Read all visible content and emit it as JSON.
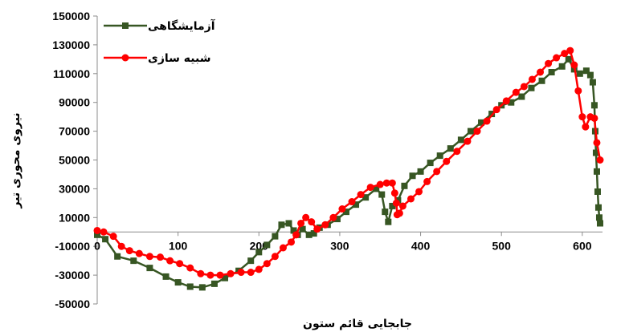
{
  "chart_data": {
    "type": "line",
    "title": "",
    "xlabel": "جابجایی قائم ستون",
    "ylabel": "نیروی محوری تیر",
    "xlim": [
      0,
      625
    ],
    "ylim": [
      -50000,
      150000
    ],
    "x_ticks": [
      0,
      100,
      200,
      300,
      400,
      500,
      600
    ],
    "y_ticks": [
      -50000,
      -30000,
      -10000,
      10000,
      30000,
      50000,
      70000,
      90000,
      110000,
      130000,
      150000
    ],
    "x_tick_labels": [
      "0",
      "100",
      "200",
      "300",
      "400",
      "500",
      "600"
    ],
    "y_tick_labels": [
      "-50000",
      "-30000",
      "-10000",
      "10000",
      "30000",
      "50000",
      "70000",
      "90000",
      "110000",
      "130000",
      "150000"
    ],
    "grid": false,
    "legend_position": "top-left",
    "series": [
      {
        "name": "آزمایشگاهی",
        "color": "#375623",
        "marker": "square",
        "points": [
          [
            0,
            0
          ],
          [
            0,
            -2000
          ],
          [
            10,
            -5000
          ],
          [
            25,
            -17000
          ],
          [
            45,
            -20000
          ],
          [
            65,
            -25000
          ],
          [
            85,
            -31000
          ],
          [
            100,
            -35000
          ],
          [
            115,
            -38000
          ],
          [
            130,
            -38500
          ],
          [
            145,
            -36000
          ],
          [
            158,
            -32000
          ],
          [
            175,
            -27000
          ],
          [
            190,
            -20000
          ],
          [
            200,
            -14000
          ],
          [
            210,
            -9000
          ],
          [
            220,
            -3000
          ],
          [
            228,
            5000
          ],
          [
            237,
            6000
          ],
          [
            243,
            1000
          ],
          [
            248,
            -2000
          ],
          [
            254,
            2000
          ],
          [
            262,
            -2000
          ],
          [
            268,
            -1000
          ],
          [
            275,
            3000
          ],
          [
            285,
            5000
          ],
          [
            297,
            9000
          ],
          [
            308,
            14000
          ],
          [
            320,
            19000
          ],
          [
            332,
            24000
          ],
          [
            345,
            30000
          ],
          [
            352,
            26000
          ],
          [
            356,
            14000
          ],
          [
            360,
            7000
          ],
          [
            365,
            18000
          ],
          [
            372,
            22000
          ],
          [
            380,
            32000
          ],
          [
            390,
            39000
          ],
          [
            400,
            42000
          ],
          [
            412,
            48000
          ],
          [
            424,
            53000
          ],
          [
            437,
            58000
          ],
          [
            450,
            64000
          ],
          [
            462,
            70000
          ],
          [
            475,
            76000
          ],
          [
            488,
            82000
          ],
          [
            500,
            88000
          ],
          [
            512,
            90000
          ],
          [
            525,
            94000
          ],
          [
            537,
            100000
          ],
          [
            550,
            105000
          ],
          [
            562,
            111000
          ],
          [
            575,
            115000
          ],
          [
            583,
            120000
          ],
          [
            590,
            113000
          ],
          [
            597,
            110000
          ],
          [
            605,
            112000
          ],
          [
            610,
            109000
          ],
          [
            613,
            104000
          ],
          [
            615,
            88000
          ],
          [
            616,
            70000
          ],
          [
            617,
            55000
          ],
          [
            618,
            42000
          ],
          [
            619,
            28000
          ],
          [
            620,
            17000
          ],
          [
            621,
            10000
          ],
          [
            622,
            6000
          ]
        ]
      },
      {
        "name": "شبیه سازی",
        "color": "#ff0000",
        "marker": "circle",
        "points": [
          [
            0,
            1000
          ],
          [
            8,
            0
          ],
          [
            20,
            -3000
          ],
          [
            30,
            -10000
          ],
          [
            40,
            -13000
          ],
          [
            52,
            -15000
          ],
          [
            65,
            -17000
          ],
          [
            78,
            -17500
          ],
          [
            90,
            -20000
          ],
          [
            102,
            -22000
          ],
          [
            115,
            -25000
          ],
          [
            128,
            -29000
          ],
          [
            140,
            -30000
          ],
          [
            152,
            -30000
          ],
          [
            165,
            -29000
          ],
          [
            178,
            -28000
          ],
          [
            190,
            -28000
          ],
          [
            200,
            -26000
          ],
          [
            210,
            -22000
          ],
          [
            220,
            -17000
          ],
          [
            230,
            -11000
          ],
          [
            240,
            -7000
          ],
          [
            246,
            -2000
          ],
          [
            252,
            6000
          ],
          [
            258,
            10000
          ],
          [
            265,
            7000
          ],
          [
            272,
            2000
          ],
          [
            282,
            5000
          ],
          [
            292,
            10000
          ],
          [
            303,
            16000
          ],
          [
            315,
            21000
          ],
          [
            326,
            26000
          ],
          [
            338,
            31000
          ],
          [
            350,
            33000
          ],
          [
            358,
            34000
          ],
          [
            365,
            34000
          ],
          [
            368,
            27000
          ],
          [
            370,
            20000
          ],
          [
            371,
            12000
          ],
          [
            374,
            13000
          ],
          [
            378,
            18000
          ],
          [
            388,
            23000
          ],
          [
            398,
            28000
          ],
          [
            408,
            35000
          ],
          [
            420,
            42000
          ],
          [
            432,
            49000
          ],
          [
            445,
            56000
          ],
          [
            458,
            63000
          ],
          [
            470,
            70000
          ],
          [
            482,
            77000
          ],
          [
            494,
            85000
          ],
          [
            506,
            91000
          ],
          [
            518,
            97000
          ],
          [
            528,
            101000
          ],
          [
            538,
            106000
          ],
          [
            548,
            111000
          ],
          [
            558,
            117000
          ],
          [
            568,
            121000
          ],
          [
            578,
            124000
          ],
          [
            585,
            126000
          ],
          [
            590,
            116000
          ],
          [
            595,
            98000
          ],
          [
            600,
            80000
          ],
          [
            604,
            73000
          ],
          [
            610,
            80000
          ],
          [
            615,
            79000
          ],
          [
            618,
            62000
          ],
          [
            622,
            50000
          ]
        ]
      }
    ]
  }
}
